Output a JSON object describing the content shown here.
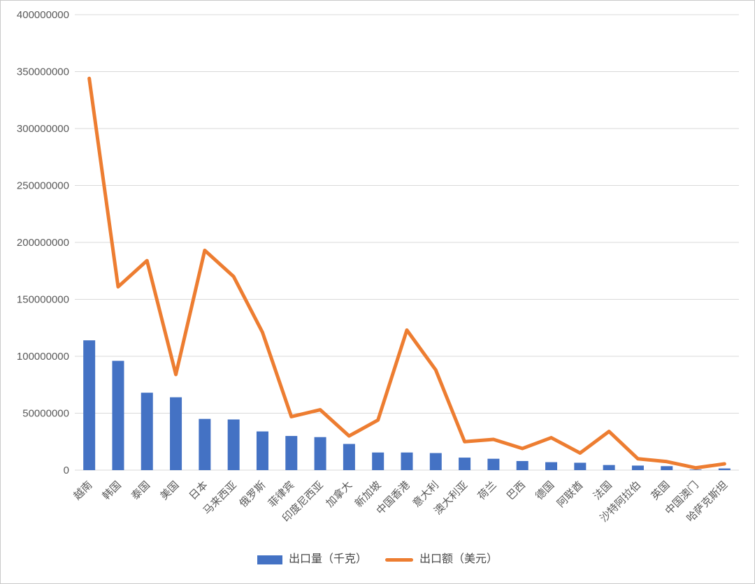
{
  "window": {
    "background_color": "#FFFFFF",
    "frame_border_color": "#C9C9C9"
  },
  "chart_data": {
    "type": "combo",
    "title": "",
    "xlabel": "",
    "ylabel": "",
    "categories": [
      "越南",
      "韩国",
      "泰国",
      "美国",
      "日本",
      "马来西亚",
      "俄罗斯",
      "菲律宾",
      "印度尼西亚",
      "加拿大",
      "新加坡",
      "中国香港",
      "意大利",
      "澳大利亚",
      "荷兰",
      "巴西",
      "德国",
      "阿联酋",
      "法国",
      "沙特阿拉伯",
      "英国",
      "中国澳门",
      "哈萨克斯坦"
    ],
    "series": [
      {
        "name": "出口量（千克）",
        "type": "bar",
        "color": "#4472C4",
        "values": [
          114000000,
          96000000,
          68000000,
          64000000,
          45000000,
          44500000,
          34000000,
          30000000,
          29000000,
          23000000,
          15500000,
          15500000,
          15000000,
          11000000,
          10000000,
          8000000,
          7000000,
          6500000,
          4500000,
          4000000,
          3500000,
          500000,
          1500000
        ]
      },
      {
        "name": "出口额（美元）",
        "type": "line",
        "color": "#ED7D31",
        "values": [
          344000000,
          161000000,
          184000000,
          84000000,
          193000000,
          170000000,
          121000000,
          47000000,
          53000000,
          30000000,
          44000000,
          123000000,
          88000000,
          25000000,
          27000000,
          19000000,
          28500000,
          15000000,
          34000000,
          10000000,
          7500000,
          2000000,
          5500000
        ]
      }
    ],
    "ylim": [
      0,
      400000000
    ],
    "ytick_step": 50000000,
    "ytick_labels": [
      "0",
      "50000000",
      "100000000",
      "150000000",
      "200000000",
      "250000000",
      "300000000",
      "350000000",
      "400000000"
    ],
    "grid": true,
    "gridline_color": "#D9D9D9",
    "axis_line_color": "#D9D9D9",
    "tick_label_color": "#595959",
    "legend_position": "bottom",
    "x_label_rotation_deg": -45
  }
}
